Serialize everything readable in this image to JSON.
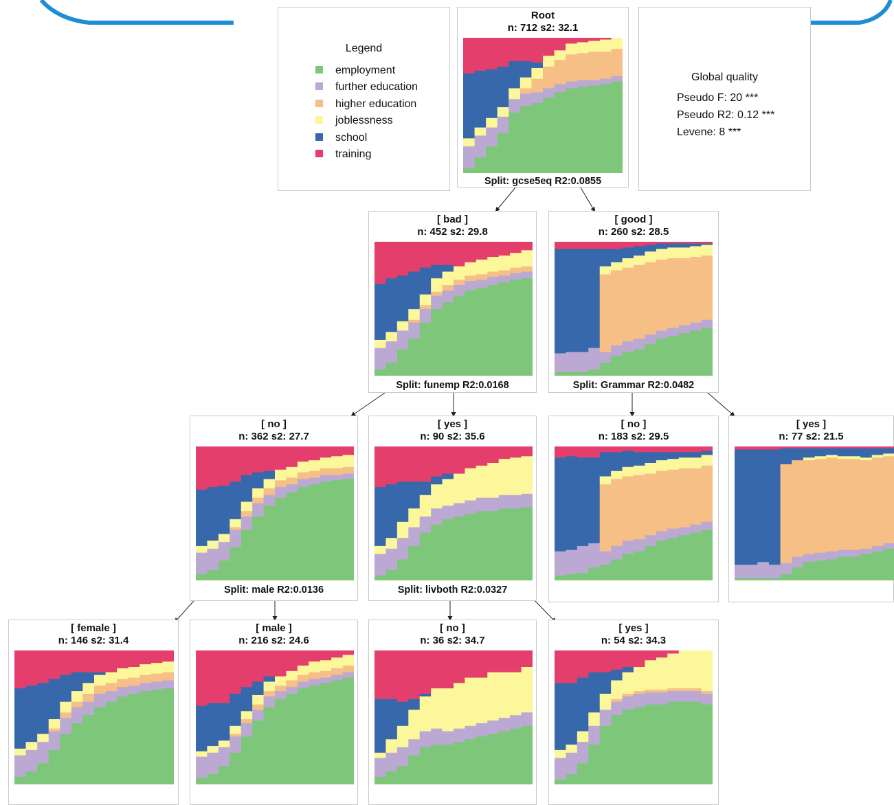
{
  "colors": {
    "employment": "#7ec67a",
    "further_education": "#bba9d3",
    "higher_education": "#f6bf86",
    "joblessness": "#fbf79a",
    "school": "#3668ab",
    "training": "#e43f6c",
    "header_band": "#1f8dd6"
  },
  "legend": {
    "title": "Legend",
    "items": [
      {
        "label": "employment",
        "color": "#7ec67a"
      },
      {
        "label": "further education",
        "color": "#bba9d3"
      },
      {
        "label": "higher education",
        "color": "#f6bf86"
      },
      {
        "label": "joblessness",
        "color": "#fbf79a"
      },
      {
        "label": "school",
        "color": "#3668ab"
      },
      {
        "label": "training",
        "color": "#e43f6c"
      }
    ]
  },
  "global_quality": {
    "title": "Global quality",
    "lines": [
      "Pseudo F: 20 ***",
      "Pseudo R2: 0.12 ***",
      "Levene: 8 ***"
    ]
  },
  "nodes": [
    {
      "id": "root",
      "title": "Root",
      "stats": "n: 712 s2: 32.1",
      "split": "Split: gcse5eq R2:0.0855",
      "profile": {
        "emp": [
          0.04,
          0.12,
          0.2,
          0.3,
          0.45,
          0.5,
          0.52,
          0.56,
          0.6,
          0.63,
          0.64,
          0.65,
          0.66,
          0.68
        ],
        "fed": [
          0.16,
          0.16,
          0.14,
          0.12,
          0.1,
          0.09,
          0.08,
          0.07,
          0.06,
          0.05,
          0.05,
          0.04,
          0.04,
          0.04
        ],
        "hed": [
          0.0,
          0.0,
          0.0,
          0.0,
          0.0,
          0.04,
          0.1,
          0.16,
          0.18,
          0.2,
          0.2,
          0.21,
          0.2,
          0.2
        ],
        "job": [
          0.06,
          0.06,
          0.07,
          0.07,
          0.08,
          0.08,
          0.08,
          0.08,
          0.07,
          0.08,
          0.08,
          0.08,
          0.09,
          0.09
        ],
        "sch": [
          0.48,
          0.42,
          0.36,
          0.3,
          0.2,
          0.12,
          0.04,
          0.0,
          0.0,
          0.0,
          0.0,
          0.0,
          0.0,
          0.0
        ]
      }
    },
    {
      "id": "bad",
      "title": "[ bad ]",
      "stats": "n: 452 s2: 29.8",
      "split": "Split: funemp R2:0.0168",
      "profile": {
        "emp": [
          0.05,
          0.1,
          0.2,
          0.28,
          0.4,
          0.5,
          0.55,
          0.6,
          0.64,
          0.66,
          0.68,
          0.7,
          0.72,
          0.73
        ],
        "fed": [
          0.16,
          0.16,
          0.14,
          0.12,
          0.1,
          0.1,
          0.09,
          0.08,
          0.07,
          0.06,
          0.06,
          0.05,
          0.05,
          0.05
        ],
        "hed": [
          0.0,
          0.0,
          0.0,
          0.02,
          0.03,
          0.03,
          0.04,
          0.04,
          0.04,
          0.04,
          0.04,
          0.04,
          0.04,
          0.04
        ],
        "job": [
          0.06,
          0.07,
          0.07,
          0.08,
          0.08,
          0.1,
          0.1,
          0.1,
          0.1,
          0.11,
          0.11,
          0.11,
          0.11,
          0.12
        ],
        "sch": [
          0.42,
          0.4,
          0.34,
          0.28,
          0.2,
          0.1,
          0.05,
          0.0,
          0.0,
          0.0,
          0.0,
          0.0,
          0.0,
          0.0
        ]
      }
    },
    {
      "id": "good",
      "title": "[ good ]",
      "stats": "n: 260 s2: 28.5",
      "split": "Split: Grammar R2:0.0482",
      "profile": {
        "emp": [
          0.03,
          0.03,
          0.03,
          0.05,
          0.1,
          0.15,
          0.18,
          0.2,
          0.24,
          0.28,
          0.3,
          0.32,
          0.34,
          0.36
        ],
        "fed": [
          0.14,
          0.15,
          0.15,
          0.16,
          0.08,
          0.08,
          0.08,
          0.08,
          0.07,
          0.06,
          0.06,
          0.06,
          0.06,
          0.06
        ],
        "hed": [
          0.0,
          0.0,
          0.0,
          0.0,
          0.58,
          0.56,
          0.55,
          0.55,
          0.54,
          0.53,
          0.52,
          0.5,
          0.49,
          0.48
        ],
        "job": [
          0.0,
          0.0,
          0.0,
          0.0,
          0.06,
          0.06,
          0.07,
          0.07,
          0.08,
          0.08,
          0.08,
          0.08,
          0.08,
          0.08
        ],
        "sch": [
          0.78,
          0.77,
          0.77,
          0.74,
          0.13,
          0.1,
          0.08,
          0.07,
          0.05,
          0.04,
          0.03,
          0.03,
          0.02,
          0.01
        ]
      }
    },
    {
      "id": "bad-no",
      "title": "[ no ]",
      "stats": "n: 362 s2: 27.7",
      "split": "Split: male R2:0.0136",
      "profile": {
        "emp": [
          0.05,
          0.08,
          0.15,
          0.25,
          0.38,
          0.48,
          0.56,
          0.62,
          0.66,
          0.7,
          0.72,
          0.74,
          0.75,
          0.76
        ],
        "fed": [
          0.16,
          0.16,
          0.14,
          0.13,
          0.1,
          0.1,
          0.08,
          0.08,
          0.06,
          0.06,
          0.05,
          0.05,
          0.04,
          0.04
        ],
        "hed": [
          0.0,
          0.0,
          0.0,
          0.02,
          0.04,
          0.04,
          0.05,
          0.05,
          0.05,
          0.05,
          0.05,
          0.05,
          0.05,
          0.05
        ],
        "job": [
          0.05,
          0.06,
          0.06,
          0.06,
          0.07,
          0.07,
          0.07,
          0.08,
          0.08,
          0.08,
          0.08,
          0.08,
          0.09,
          0.09
        ],
        "sch": [
          0.42,
          0.4,
          0.36,
          0.28,
          0.2,
          0.12,
          0.06,
          0.0,
          0.0,
          0.0,
          0.0,
          0.0,
          0.0,
          0.0
        ]
      }
    },
    {
      "id": "bad-yes",
      "title": "[ yes ]",
      "stats": "n: 90 s2: 35.6",
      "split": "Split: livboth R2:0.0327",
      "profile": {
        "emp": [
          0.04,
          0.08,
          0.16,
          0.26,
          0.36,
          0.42,
          0.46,
          0.48,
          0.5,
          0.52,
          0.52,
          0.54,
          0.54,
          0.55
        ],
        "fed": [
          0.16,
          0.16,
          0.16,
          0.14,
          0.12,
          0.12,
          0.1,
          0.1,
          0.1,
          0.1,
          0.1,
          0.1,
          0.1,
          0.1
        ],
        "hed": [
          0.0,
          0.0,
          0.0,
          0.0,
          0.0,
          0.0,
          0.0,
          0.0,
          0.0,
          0.0,
          0.0,
          0.0,
          0.0,
          0.0
        ],
        "job": [
          0.06,
          0.08,
          0.12,
          0.14,
          0.16,
          0.18,
          0.2,
          0.22,
          0.24,
          0.24,
          0.26,
          0.27,
          0.28,
          0.28
        ],
        "sch": [
          0.44,
          0.4,
          0.3,
          0.2,
          0.1,
          0.06,
          0.04,
          0.0,
          0.0,
          0.0,
          0.0,
          0.0,
          0.0,
          0.0
        ]
      }
    },
    {
      "id": "good-no",
      "title": "[ no ]",
      "stats": "n: 183 s2: 29.5",
      "split": "",
      "profile": {
        "emp": [
          0.04,
          0.05,
          0.06,
          0.1,
          0.12,
          0.16,
          0.2,
          0.22,
          0.26,
          0.3,
          0.32,
          0.34,
          0.36,
          0.38
        ],
        "fed": [
          0.18,
          0.18,
          0.2,
          0.18,
          0.1,
          0.1,
          0.1,
          0.09,
          0.08,
          0.07,
          0.07,
          0.06,
          0.06,
          0.06
        ],
        "hed": [
          0.0,
          0.0,
          0.0,
          0.0,
          0.5,
          0.5,
          0.48,
          0.48,
          0.46,
          0.45,
          0.44,
          0.44,
          0.42,
          0.42
        ],
        "job": [
          0.0,
          0.0,
          0.0,
          0.0,
          0.06,
          0.06,
          0.07,
          0.07,
          0.08,
          0.08,
          0.08,
          0.08,
          0.08,
          0.08
        ],
        "sch": [
          0.7,
          0.7,
          0.66,
          0.64,
          0.18,
          0.14,
          0.12,
          0.1,
          0.08,
          0.06,
          0.05,
          0.04,
          0.04,
          0.03
        ]
      }
    },
    {
      "id": "good-yes",
      "title": "[ yes ]",
      "stats": "n: 77 s2: 21.5",
      "split": "",
      "profile": {
        "emp": [
          0.02,
          0.02,
          0.02,
          0.02,
          0.05,
          0.1,
          0.14,
          0.15,
          0.16,
          0.18,
          0.18,
          0.2,
          0.22,
          0.24
        ],
        "fed": [
          0.1,
          0.1,
          0.12,
          0.1,
          0.08,
          0.08,
          0.06,
          0.06,
          0.06,
          0.05,
          0.05,
          0.04,
          0.04,
          0.04
        ],
        "hed": [
          0.0,
          0.0,
          0.0,
          0.0,
          0.74,
          0.72,
          0.7,
          0.7,
          0.7,
          0.68,
          0.68,
          0.66,
          0.66,
          0.65
        ],
        "job": [
          0.0,
          0.0,
          0.0,
          0.0,
          0.0,
          0.0,
          0.02,
          0.02,
          0.02,
          0.02,
          0.02,
          0.02,
          0.02,
          0.02
        ],
        "sch": [
          0.86,
          0.86,
          0.84,
          0.86,
          0.12,
          0.09,
          0.07,
          0.06,
          0.05,
          0.06,
          0.06,
          0.07,
          0.05,
          0.04
        ]
      }
    },
    {
      "id": "no-female",
      "title": "[ female ]",
      "stats": "n: 146 s2: 31.4",
      "split": "",
      "profile": {
        "emp": [
          0.06,
          0.1,
          0.16,
          0.26,
          0.38,
          0.46,
          0.52,
          0.58,
          0.62,
          0.66,
          0.68,
          0.7,
          0.71,
          0.72
        ],
        "fed": [
          0.16,
          0.16,
          0.16,
          0.14,
          0.12,
          0.12,
          0.1,
          0.1,
          0.08,
          0.07,
          0.06,
          0.06,
          0.06,
          0.06
        ],
        "hed": [
          0.0,
          0.0,
          0.0,
          0.02,
          0.04,
          0.04,
          0.06,
          0.06,
          0.06,
          0.06,
          0.06,
          0.06,
          0.06,
          0.06
        ],
        "job": [
          0.05,
          0.06,
          0.06,
          0.07,
          0.08,
          0.08,
          0.08,
          0.08,
          0.08,
          0.08,
          0.08,
          0.08,
          0.08,
          0.08
        ],
        "sch": [
          0.45,
          0.42,
          0.38,
          0.3,
          0.2,
          0.14,
          0.08,
          0.02,
          0.0,
          0.0,
          0.0,
          0.0,
          0.0,
          0.0
        ]
      }
    },
    {
      "id": "no-male",
      "title": "[ male ]",
      "stats": "n: 216 s2: 24.6",
      "split": "",
      "profile": {
        "emp": [
          0.05,
          0.08,
          0.14,
          0.24,
          0.36,
          0.48,
          0.58,
          0.64,
          0.68,
          0.72,
          0.74,
          0.76,
          0.78,
          0.8
        ],
        "fed": [
          0.16,
          0.16,
          0.14,
          0.12,
          0.1,
          0.08,
          0.08,
          0.06,
          0.05,
          0.05,
          0.05,
          0.04,
          0.04,
          0.04
        ],
        "hed": [
          0.0,
          0.0,
          0.0,
          0.02,
          0.03,
          0.04,
          0.04,
          0.04,
          0.05,
          0.05,
          0.05,
          0.05,
          0.05,
          0.05
        ],
        "job": [
          0.04,
          0.05,
          0.05,
          0.06,
          0.06,
          0.07,
          0.07,
          0.07,
          0.07,
          0.07,
          0.08,
          0.08,
          0.08,
          0.08
        ],
        "sch": [
          0.34,
          0.32,
          0.28,
          0.24,
          0.18,
          0.1,
          0.04,
          0.0,
          0.0,
          0.0,
          0.0,
          0.0,
          0.0,
          0.0
        ]
      }
    },
    {
      "id": "yes-no",
      "title": "[ no ]",
      "stats": "n: 36 s2: 34.7",
      "split": "",
      "profile": {
        "emp": [
          0.06,
          0.1,
          0.14,
          0.22,
          0.28,
          0.3,
          0.3,
          0.32,
          0.34,
          0.36,
          0.38,
          0.4,
          0.42,
          0.44
        ],
        "fed": [
          0.14,
          0.14,
          0.14,
          0.12,
          0.12,
          0.12,
          0.1,
          0.1,
          0.1,
          0.1,
          0.1,
          0.1,
          0.1,
          0.1
        ],
        "hed": [
          0.0,
          0.0,
          0.0,
          0.0,
          0.0,
          0.0,
          0.0,
          0.0,
          0.0,
          0.0,
          0.0,
          0.0,
          0.0,
          0.0
        ],
        "job": [
          0.04,
          0.1,
          0.16,
          0.22,
          0.26,
          0.3,
          0.32,
          0.34,
          0.36,
          0.34,
          0.36,
          0.34,
          0.32,
          0.34
        ],
        "sch": [
          0.4,
          0.3,
          0.18,
          0.08,
          0.02,
          0.0,
          0.0,
          0.0,
          0.0,
          0.0,
          0.0,
          0.0,
          0.0,
          0.0
        ]
      }
    },
    {
      "id": "yes-yes",
      "title": "[ yes ]",
      "stats": "n: 54 s2: 34.3",
      "split": "",
      "profile": {
        "emp": [
          0.04,
          0.08,
          0.16,
          0.3,
          0.44,
          0.52,
          0.56,
          0.58,
          0.6,
          0.6,
          0.62,
          0.62,
          0.62,
          0.6
        ],
        "fed": [
          0.16,
          0.16,
          0.16,
          0.14,
          0.12,
          0.1,
          0.1,
          0.1,
          0.09,
          0.09,
          0.08,
          0.08,
          0.08,
          0.08
        ],
        "hed": [
          0.0,
          0.0,
          0.0,
          0.0,
          0.0,
          0.02,
          0.02,
          0.02,
          0.02,
          0.02,
          0.02,
          0.02,
          0.02,
          0.02
        ],
        "job": [
          0.06,
          0.06,
          0.08,
          0.1,
          0.12,
          0.14,
          0.16,
          0.18,
          0.22,
          0.24,
          0.26,
          0.28,
          0.28,
          0.3
        ],
        "sch": [
          0.5,
          0.46,
          0.4,
          0.3,
          0.16,
          0.08,
          0.04,
          0.0,
          0.0,
          0.0,
          0.0,
          0.0,
          0.0,
          0.0
        ]
      }
    }
  ]
}
